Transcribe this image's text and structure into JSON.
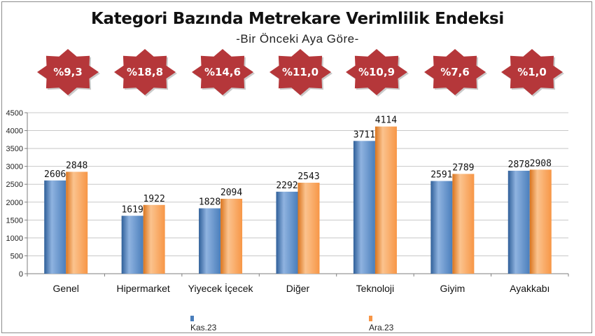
{
  "title": "Kategori Bazında Metrekare Verimlilik Endeksi",
  "subtitle": "-Bir Önceki Aya Göre-",
  "badges": [
    "%9,3",
    "%18,8",
    "%14,6",
    "%11,0",
    "%10,9",
    "%7,6",
    "%1,0"
  ],
  "colors": {
    "badge": "#b5373a",
    "kas": "#4a7ebb",
    "ara": "#f79646",
    "grid": "#c8c8c8",
    "axis": "#7f7f7f"
  },
  "chart_data": {
    "type": "bar",
    "categories": [
      "Genel",
      "Hipermarket",
      "Yiyecek İçecek",
      "Diğer",
      "Teknoloji",
      "Giyim",
      "Ayakkabı"
    ],
    "series": [
      {
        "name": "Kas.23",
        "values": [
          2606,
          1619,
          1828,
          2292,
          3711,
          2591,
          2878
        ]
      },
      {
        "name": "Ara.23",
        "values": [
          2848,
          1922,
          2094,
          2543,
          4114,
          2789,
          2908
        ]
      }
    ],
    "ylim": [
      0,
      4500
    ],
    "yticks": [
      "0",
      "500",
      "1000",
      "1500",
      "2000",
      "2500",
      "3000",
      "3500",
      "4000",
      "4500"
    ],
    "grid": true,
    "legend": "bottom"
  }
}
